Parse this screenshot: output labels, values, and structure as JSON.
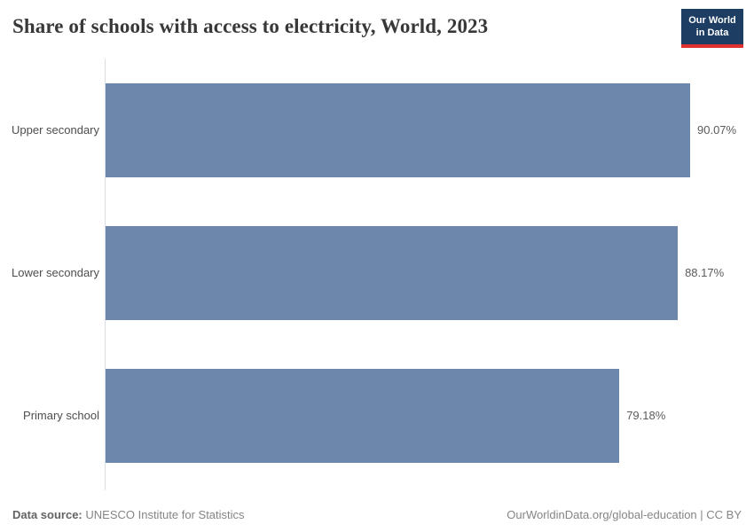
{
  "header": {
    "title": "Share of schools with access to electricity, World, 2023",
    "logo": {
      "line1": "Our World",
      "line2": "in Data"
    }
  },
  "chart_data": {
    "type": "bar",
    "orientation": "horizontal",
    "title": "Share of schools with access to electricity, World, 2023",
    "categories": [
      "Upper secondary",
      "Lower secondary",
      "Primary school"
    ],
    "values": [
      90.07,
      88.17,
      79.18
    ],
    "value_labels": [
      "90.07%",
      "88.17%",
      "79.18%"
    ],
    "unit": "%",
    "xlim": [
      0,
      90.07
    ],
    "gridlines": false,
    "legend": "none",
    "axis_style": "single vertical baseline at left, no tick marks"
  },
  "footer": {
    "source_label": "Data source:",
    "source_value": "UNESCO Institute for Statistics",
    "attribution": "OurWorldinData.org/global-education | CC BY"
  },
  "colors": {
    "bar": "#6d87ac",
    "logo_background": "#1d3d63",
    "logo_accent": "#e03131",
    "title_text": "#383838",
    "category_label": "#4d4d4d",
    "value_label": "#5b5b5b",
    "axis_line": "#dcdfe2"
  }
}
